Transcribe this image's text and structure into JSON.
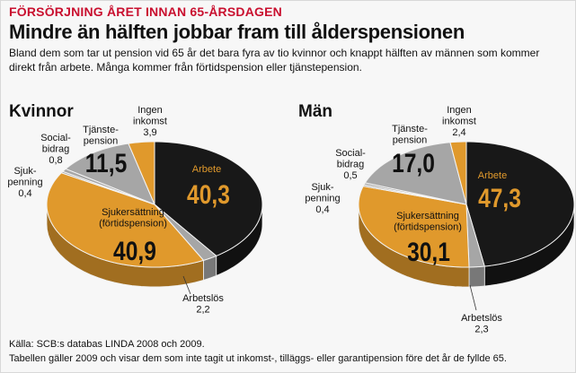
{
  "header": {
    "kicker": "FÖRSÖRJNING ÅRET INNAN 65-ÅRSDAGEN",
    "title": "Mindre än hälften jobbar fram till ålderspensionen",
    "intro": "Bland dem som tar ut pension vid 65 år det bara fyra av tio kvinnor och knappt hälften av männen som kommer direkt från arbete. Många kommer från förtidspension eller tjänstepension."
  },
  "footer": {
    "source": "Källa: SCB:s databas LINDA 2008 och 2009.",
    "note": "Tabellen gäller 2009 och visar dem som inte tagit ut inkomst-, tilläggs- eller garantipension före det år de fyllde 65."
  },
  "colors": {
    "arbete": "#181818",
    "sjuk": "#e0992c",
    "tjanste": "#a6a6a6",
    "ingen": "#e0992c",
    "small": "#a6a6a6",
    "kicker": "#c9102f"
  },
  "chart_data": [
    {
      "type": "pie",
      "title": "Kvinnor",
      "slices": [
        {
          "key": "arbete",
          "label": "Arbete",
          "value": 40.3,
          "display": "40,3"
        },
        {
          "key": "arbetslos",
          "label": "Arbetslös",
          "value": 2.2,
          "display": "2,2"
        },
        {
          "key": "sjuk",
          "label": "Sjukersättning (förtidspension)",
          "label_lines": [
            "Sjukersättning",
            "(förtidspension)"
          ],
          "value": 40.9,
          "display": "40,9"
        },
        {
          "key": "sjukpenning",
          "label": "Sjukpenning",
          "label_lines": [
            "Sjuk-",
            "penning"
          ],
          "value": 0.4,
          "display": "0,4"
        },
        {
          "key": "socialbidrag",
          "label": "Socialbidrag",
          "label_lines": [
            "Social-",
            "bidrag"
          ],
          "value": 0.8,
          "display": "0,8"
        },
        {
          "key": "tjanste",
          "label": "Tjänstepension",
          "label_lines": [
            "Tjänste-",
            "pension"
          ],
          "value": 11.5,
          "display": "11,5"
        },
        {
          "key": "ingen",
          "label": "Ingen inkomst",
          "label_lines": [
            "Ingen",
            "inkomst"
          ],
          "value": 3.9,
          "display": "3,9"
        }
      ]
    },
    {
      "type": "pie",
      "title": "Män",
      "slices": [
        {
          "key": "arbete",
          "label": "Arbete",
          "value": 47.3,
          "display": "47,3"
        },
        {
          "key": "arbetslos",
          "label": "Arbetslös",
          "value": 2.3,
          "display": "2,3"
        },
        {
          "key": "sjuk",
          "label": "Sjukersättning (förtidspension)",
          "label_lines": [
            "Sjukersättning",
            "(förtidspension)"
          ],
          "value": 30.1,
          "display": "30,1"
        },
        {
          "key": "sjukpenning",
          "label": "Sjukpenning",
          "label_lines": [
            "Sjuk-",
            "penning"
          ],
          "value": 0.4,
          "display": "0,4"
        },
        {
          "key": "socialbidrag",
          "label": "Socialbidrag",
          "label_lines": [
            "Social-",
            "bidrag"
          ],
          "value": 0.5,
          "display": "0,5"
        },
        {
          "key": "tjanste",
          "label": "Tjänstepension",
          "label_lines": [
            "Tjänste-",
            "pension"
          ],
          "value": 17.0,
          "display": "17,0"
        },
        {
          "key": "ingen",
          "label": "Ingen inkomst",
          "label_lines": [
            "Ingen",
            "inkomst"
          ],
          "value": 2.4,
          "display": "2,4"
        }
      ]
    }
  ]
}
